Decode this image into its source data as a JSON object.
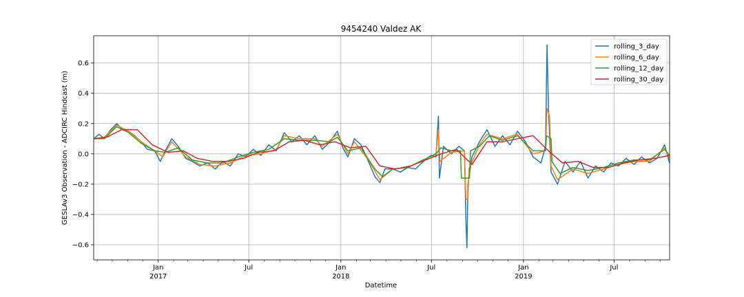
{
  "chart_data": {
    "type": "line",
    "title": "9454240 Valdez AK",
    "xlabel": "Datetime",
    "ylabel": "GESLAv3 Observation - ADCIRC Hindcast (m)",
    "xlim": [
      "2016-08-25",
      "2019-10-20"
    ],
    "ylim": [
      -0.7,
      0.78
    ],
    "grid": true,
    "legend_position": "top-right",
    "x_ticks_major": [
      {
        "date": "2017-01-01",
        "label": "Jan",
        "sublabel": "2017"
      },
      {
        "date": "2017-07-01",
        "label": "Jul",
        "sublabel": ""
      },
      {
        "date": "2018-01-01",
        "label": "Jan",
        "sublabel": "2018"
      },
      {
        "date": "2018-07-01",
        "label": "Jul",
        "sublabel": ""
      },
      {
        "date": "2019-01-01",
        "label": "Jan",
        "sublabel": "2019"
      },
      {
        "date": "2019-07-01",
        "label": "Jul",
        "sublabel": ""
      }
    ],
    "y_ticks": [
      -0.6,
      -0.4,
      -0.2,
      0.0,
      0.2,
      0.4,
      0.6
    ],
    "y_tick_labels": [
      "−0.6",
      "−0.4",
      "−0.2",
      "0.0",
      "0.2",
      "0.4",
      "0.6"
    ],
    "series": [
      {
        "name": "rolling_3_day",
        "color": "#1f77b4",
        "points": [
          [
            "2016-08-25",
            0.1
          ],
          [
            "2016-09-05",
            0.13
          ],
          [
            "2016-09-15",
            0.1
          ],
          [
            "2016-09-28",
            0.16
          ],
          [
            "2016-10-10",
            0.2
          ],
          [
            "2016-10-22",
            0.16
          ],
          [
            "2016-11-03",
            0.15
          ],
          [
            "2016-11-15",
            0.12
          ],
          [
            "2016-11-28",
            0.08
          ],
          [
            "2016-12-10",
            0.03
          ],
          [
            "2016-12-25",
            0.02
          ],
          [
            "2017-01-05",
            -0.05
          ],
          [
            "2017-01-15",
            0.02
          ],
          [
            "2017-01-28",
            0.1
          ],
          [
            "2017-02-10",
            0.05
          ],
          [
            "2017-02-25",
            -0.03
          ],
          [
            "2017-03-10",
            -0.05
          ],
          [
            "2017-03-25",
            -0.08
          ],
          [
            "2017-04-10",
            -0.06
          ],
          [
            "2017-04-25",
            -0.1
          ],
          [
            "2017-05-10",
            -0.05
          ],
          [
            "2017-05-25",
            -0.08
          ],
          [
            "2017-06-10",
            0.0
          ],
          [
            "2017-06-25",
            -0.02
          ],
          [
            "2017-07-10",
            0.03
          ],
          [
            "2017-07-25",
            -0.01
          ],
          [
            "2017-08-10",
            0.06
          ],
          [
            "2017-08-25",
            0.02
          ],
          [
            "2017-09-10",
            0.14
          ],
          [
            "2017-09-25",
            0.08
          ],
          [
            "2017-10-10",
            0.12
          ],
          [
            "2017-10-25",
            0.06
          ],
          [
            "2017-11-10",
            0.12
          ],
          [
            "2017-11-25",
            0.03
          ],
          [
            "2017-12-10",
            0.08
          ],
          [
            "2017-12-25",
            0.15
          ],
          [
            "2018-01-05",
            0.04
          ],
          [
            "2018-01-15",
            -0.02
          ],
          [
            "2018-01-28",
            0.1
          ],
          [
            "2018-02-10",
            0.06
          ],
          [
            "2018-02-25",
            -0.05
          ],
          [
            "2018-03-10",
            -0.15
          ],
          [
            "2018-03-20",
            -0.19
          ],
          [
            "2018-03-30",
            -0.1
          ],
          [
            "2018-04-15",
            -0.1
          ],
          [
            "2018-04-30",
            -0.12
          ],
          [
            "2018-05-15",
            -0.09
          ],
          [
            "2018-05-30",
            -0.1
          ],
          [
            "2018-06-15",
            -0.05
          ],
          [
            "2018-06-30",
            -0.01
          ],
          [
            "2018-07-10",
            -0.02
          ],
          [
            "2018-07-15",
            0.25
          ],
          [
            "2018-07-17",
            -0.16
          ],
          [
            "2018-07-25",
            0.05
          ],
          [
            "2018-08-10",
            0.0
          ],
          [
            "2018-08-25",
            0.05
          ],
          [
            "2018-09-05",
            0.02
          ],
          [
            "2018-09-08",
            -0.45
          ],
          [
            "2018-09-10",
            -0.62
          ],
          [
            "2018-09-12",
            -0.2
          ],
          [
            "2018-09-20",
            -0.02
          ],
          [
            "2018-10-05",
            0.08
          ],
          [
            "2018-10-20",
            0.16
          ],
          [
            "2018-11-05",
            0.05
          ],
          [
            "2018-11-20",
            0.12
          ],
          [
            "2018-12-05",
            0.06
          ],
          [
            "2018-12-20",
            0.15
          ],
          [
            "2019-01-05",
            0.08
          ],
          [
            "2019-01-20",
            -0.02
          ],
          [
            "2019-02-05",
            -0.06
          ],
          [
            "2019-02-14",
            0.05
          ],
          [
            "2019-02-17",
            0.72
          ],
          [
            "2019-02-20",
            0.3
          ],
          [
            "2019-02-25",
            -0.12
          ],
          [
            "2019-03-10",
            -0.2
          ],
          [
            "2019-03-25",
            -0.05
          ],
          [
            "2019-04-10",
            -0.12
          ],
          [
            "2019-04-25",
            -0.05
          ],
          [
            "2019-05-10",
            -0.16
          ],
          [
            "2019-05-25",
            -0.08
          ],
          [
            "2019-06-10",
            -0.12
          ],
          [
            "2019-06-25",
            -0.06
          ],
          [
            "2019-07-10",
            -0.08
          ],
          [
            "2019-07-25",
            -0.03
          ],
          [
            "2019-08-10",
            -0.07
          ],
          [
            "2019-08-25",
            -0.02
          ],
          [
            "2019-09-10",
            -0.06
          ],
          [
            "2019-09-25",
            -0.03
          ],
          [
            "2019-10-10",
            0.06
          ],
          [
            "2019-10-20",
            -0.06
          ]
        ]
      },
      {
        "name": "rolling_6_day",
        "color": "#ff7f0e",
        "points": [
          [
            "2016-08-25",
            0.1
          ],
          [
            "2016-09-15",
            0.11
          ],
          [
            "2016-10-10",
            0.19
          ],
          [
            "2016-11-03",
            0.15
          ],
          [
            "2016-11-28",
            0.08
          ],
          [
            "2016-12-25",
            0.02
          ],
          [
            "2017-01-10",
            -0.02
          ],
          [
            "2017-01-28",
            0.08
          ],
          [
            "2017-02-25",
            -0.02
          ],
          [
            "2017-03-25",
            -0.07
          ],
          [
            "2017-04-25",
            -0.08
          ],
          [
            "2017-05-25",
            -0.06
          ],
          [
            "2017-06-25",
            -0.01
          ],
          [
            "2017-07-25",
            0.0
          ],
          [
            "2017-08-25",
            0.03
          ],
          [
            "2017-09-10",
            0.12
          ],
          [
            "2017-10-10",
            0.1
          ],
          [
            "2017-11-10",
            0.1
          ],
          [
            "2017-11-25",
            0.05
          ],
          [
            "2017-12-25",
            0.13
          ],
          [
            "2018-01-15",
            0.0
          ],
          [
            "2018-01-28",
            0.08
          ],
          [
            "2018-02-25",
            -0.04
          ],
          [
            "2018-03-20",
            -0.17
          ],
          [
            "2018-04-15",
            -0.1
          ],
          [
            "2018-05-15",
            -0.09
          ],
          [
            "2018-06-15",
            -0.04
          ],
          [
            "2018-07-10",
            0.0
          ],
          [
            "2018-07-15",
            0.16
          ],
          [
            "2018-07-18",
            -0.05
          ],
          [
            "2018-08-10",
            0.01
          ],
          [
            "2018-09-05",
            0.02
          ],
          [
            "2018-09-08",
            -0.3
          ],
          [
            "2018-09-12",
            -0.3
          ],
          [
            "2018-09-14",
            -0.1
          ],
          [
            "2018-10-05",
            0.06
          ],
          [
            "2018-10-20",
            0.13
          ],
          [
            "2018-11-20",
            0.1
          ],
          [
            "2018-12-20",
            0.13
          ],
          [
            "2019-01-20",
            0.0
          ],
          [
            "2019-02-14",
            0.02
          ],
          [
            "2019-02-17",
            0.3
          ],
          [
            "2019-02-22",
            0.25
          ],
          [
            "2019-02-25",
            -0.08
          ],
          [
            "2019-03-10",
            -0.17
          ],
          [
            "2019-04-10",
            -0.1
          ],
          [
            "2019-05-10",
            -0.13
          ],
          [
            "2019-06-10",
            -0.1
          ],
          [
            "2019-07-10",
            -0.07
          ],
          [
            "2019-08-10",
            -0.05
          ],
          [
            "2019-09-10",
            -0.05
          ],
          [
            "2019-10-10",
            0.04
          ],
          [
            "2019-10-20",
            -0.03
          ]
        ]
      },
      {
        "name": "rolling_12_day",
        "color": "#2ca02c",
        "points": [
          [
            "2016-08-25",
            0.1
          ],
          [
            "2016-09-15",
            0.1
          ],
          [
            "2016-10-10",
            0.18
          ],
          [
            "2016-11-03",
            0.14
          ],
          [
            "2016-11-28",
            0.07
          ],
          [
            "2016-12-25",
            0.02
          ],
          [
            "2017-01-15",
            0.01
          ],
          [
            "2017-02-10",
            0.04
          ],
          [
            "2017-03-10",
            -0.04
          ],
          [
            "2017-04-10",
            -0.06
          ],
          [
            "2017-05-10",
            -0.06
          ],
          [
            "2017-06-10",
            -0.02
          ],
          [
            "2017-07-10",
            0.01
          ],
          [
            "2017-08-10",
            0.03
          ],
          [
            "2017-09-10",
            0.1
          ],
          [
            "2017-10-10",
            0.09
          ],
          [
            "2017-11-10",
            0.09
          ],
          [
            "2017-12-10",
            0.08
          ],
          [
            "2017-12-25",
            0.11
          ],
          [
            "2018-01-15",
            0.02
          ],
          [
            "2018-02-10",
            0.04
          ],
          [
            "2018-03-10",
            -0.1
          ],
          [
            "2018-03-25",
            -0.15
          ],
          [
            "2018-04-15",
            -0.1
          ],
          [
            "2018-05-15",
            -0.09
          ],
          [
            "2018-06-15",
            -0.04
          ],
          [
            "2018-07-10",
            0.0
          ],
          [
            "2018-07-20",
            0.04
          ],
          [
            "2018-08-10",
            0.02
          ],
          [
            "2018-08-28",
            0.02
          ],
          [
            "2018-08-30",
            -0.16
          ],
          [
            "2018-09-15",
            -0.16
          ],
          [
            "2018-09-17",
            0.02
          ],
          [
            "2018-10-05",
            0.05
          ],
          [
            "2018-10-25",
            0.12
          ],
          [
            "2018-11-20",
            0.09
          ],
          [
            "2018-12-20",
            0.12
          ],
          [
            "2019-01-20",
            0.02
          ],
          [
            "2019-02-14",
            0.02
          ],
          [
            "2019-02-16",
            0.12
          ],
          [
            "2019-02-25",
            0.1
          ],
          [
            "2019-02-27",
            -0.05
          ],
          [
            "2019-03-15",
            -0.13
          ],
          [
            "2019-04-10",
            -0.09
          ],
          [
            "2019-05-10",
            -0.11
          ],
          [
            "2019-06-10",
            -0.09
          ],
          [
            "2019-07-10",
            -0.06
          ],
          [
            "2019-08-10",
            -0.04
          ],
          [
            "2019-09-10",
            -0.04
          ],
          [
            "2019-10-10",
            0.03
          ],
          [
            "2019-10-20",
            -0.01
          ]
        ]
      },
      {
        "name": "rolling_30_day",
        "color": "#d62728",
        "points": [
          [
            "2016-08-25",
            0.1
          ],
          [
            "2016-09-20",
            0.11
          ],
          [
            "2016-10-20",
            0.16
          ],
          [
            "2016-11-20",
            0.16
          ],
          [
            "2016-12-20",
            0.06
          ],
          [
            "2017-01-20",
            0.01
          ],
          [
            "2017-02-20",
            0.02
          ],
          [
            "2017-03-20",
            -0.03
          ],
          [
            "2017-04-20",
            -0.05
          ],
          [
            "2017-05-20",
            -0.05
          ],
          [
            "2017-06-20",
            -0.03
          ],
          [
            "2017-07-20",
            0.01
          ],
          [
            "2017-08-20",
            0.02
          ],
          [
            "2017-09-20",
            0.08
          ],
          [
            "2017-10-20",
            0.09
          ],
          [
            "2017-11-20",
            0.06
          ],
          [
            "2017-12-20",
            0.08
          ],
          [
            "2018-01-20",
            0.04
          ],
          [
            "2018-02-20",
            0.05
          ],
          [
            "2018-03-20",
            -0.08
          ],
          [
            "2018-04-20",
            -0.1
          ],
          [
            "2018-05-20",
            -0.08
          ],
          [
            "2018-06-20",
            -0.04
          ],
          [
            "2018-07-20",
            0.0
          ],
          [
            "2018-08-20",
            0.03
          ],
          [
            "2018-09-20",
            -0.07
          ],
          [
            "2018-10-20",
            0.08
          ],
          [
            "2018-11-20",
            0.08
          ],
          [
            "2018-12-20",
            0.1
          ],
          [
            "2019-01-20",
            0.12
          ],
          [
            "2019-02-20",
            0.02
          ],
          [
            "2019-03-20",
            -0.06
          ],
          [
            "2019-04-20",
            -0.05
          ],
          [
            "2019-05-20",
            -0.09
          ],
          [
            "2019-06-20",
            -0.09
          ],
          [
            "2019-07-20",
            -0.06
          ],
          [
            "2019-08-20",
            -0.04
          ],
          [
            "2019-09-20",
            -0.03
          ],
          [
            "2019-10-20",
            -0.01
          ]
        ]
      }
    ]
  }
}
